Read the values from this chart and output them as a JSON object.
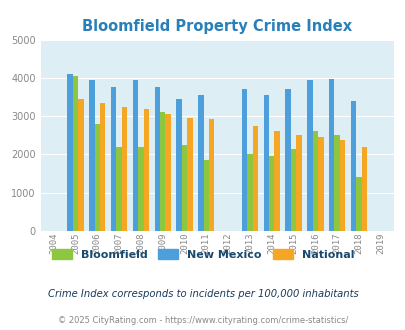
{
  "title": "Bloomfield Property Crime Index",
  "years": [
    2004,
    2005,
    2006,
    2007,
    2008,
    2009,
    2010,
    2011,
    2012,
    2013,
    2014,
    2015,
    2016,
    2017,
    2018,
    2019
  ],
  "bloomfield": [
    0,
    4050,
    2800,
    2200,
    2200,
    3100,
    2250,
    1850,
    0,
    2000,
    1950,
    2150,
    2600,
    2500,
    1400,
    0
  ],
  "new_mexico": [
    0,
    4100,
    3950,
    3750,
    3950,
    3750,
    3450,
    3550,
    0,
    3700,
    3550,
    3700,
    3950,
    3970,
    3400,
    0
  ],
  "national": [
    0,
    3450,
    3350,
    3250,
    3200,
    3050,
    2950,
    2920,
    0,
    2750,
    2600,
    2500,
    2450,
    2370,
    2200,
    0
  ],
  "bloomfield_color": "#8dc63f",
  "new_mexico_color": "#4d9fdb",
  "national_color": "#f5a623",
  "bg_color": "#ddeef5",
  "ylim": [
    0,
    5000
  ],
  "yticks": [
    0,
    1000,
    2000,
    3000,
    4000,
    5000
  ],
  "subtitle": "Crime Index corresponds to incidents per 100,000 inhabitants",
  "footer": "© 2025 CityRating.com - https://www.cityrating.com/crime-statistics/",
  "legend_labels": [
    "Bloomfield",
    "New Mexico",
    "National"
  ],
  "legend_text_color": "#1a4a6e",
  "subtitle_color": "#1a3a5c",
  "footer_color": "#888888",
  "title_color": "#2980b9",
  "bar_width": 0.25,
  "tick_color": "#888888"
}
